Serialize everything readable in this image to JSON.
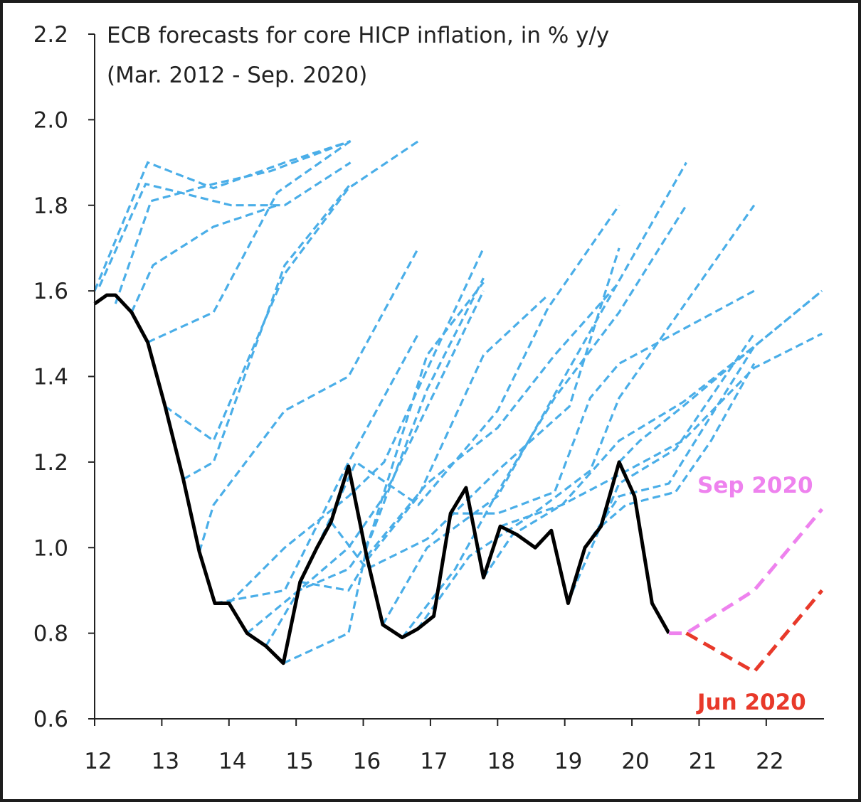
{
  "chart_data": {
    "type": "line",
    "title": "ECB forecasts for core HICP inflation, in % y/y",
    "subtitle": "(Mar. 2012  - Sep. 2020)",
    "xlim": [
      12,
      22.86
    ],
    "ylim": [
      0.6,
      2.2
    ],
    "x_ticks": [
      "12",
      "13",
      "14",
      "15",
      "16",
      "17",
      "18",
      "19",
      "20",
      "21",
      "22"
    ],
    "y_ticks": [
      "0.6",
      "0.8",
      "1.0",
      "1.2",
      "1.4",
      "1.6",
      "1.8",
      "2.0",
      "2.2"
    ],
    "grid": false,
    "colors": {
      "actual": "#000000",
      "forecast": "#4aaee8",
      "sep2020": "#ee82ee",
      "jun2020": "#e8392a"
    },
    "annotations": [
      {
        "text": "Sep 2020",
        "color": "#ee82ee"
      },
      {
        "text": "Jun 2020",
        "color": "#e8392a"
      }
    ],
    "actual": [
      [
        12.0,
        1.57
      ],
      [
        12.18,
        1.59
      ],
      [
        12.31,
        1.59
      ],
      [
        12.55,
        1.55
      ],
      [
        12.79,
        1.48
      ],
      [
        13.05,
        1.33
      ],
      [
        13.32,
        1.16
      ],
      [
        13.56,
        0.99
      ],
      [
        13.79,
        0.87
      ],
      [
        14.0,
        0.87
      ],
      [
        14.27,
        0.8
      ],
      [
        14.55,
        0.77
      ],
      [
        14.81,
        0.73
      ],
      [
        15.06,
        0.92
      ],
      [
        15.31,
        1.0
      ],
      [
        15.52,
        1.06
      ],
      [
        15.78,
        1.19
      ],
      [
        16.05,
        0.98
      ],
      [
        16.29,
        0.82
      ],
      [
        16.58,
        0.79
      ],
      [
        16.81,
        0.81
      ],
      [
        17.05,
        0.84
      ],
      [
        17.3,
        1.08
      ],
      [
        17.53,
        1.14
      ],
      [
        17.79,
        0.93
      ],
      [
        18.04,
        1.05
      ],
      [
        18.29,
        1.03
      ],
      [
        18.56,
        1.0
      ],
      [
        18.8,
        1.04
      ],
      [
        19.05,
        0.87
      ],
      [
        19.3,
        1.0
      ],
      [
        19.54,
        1.05
      ],
      [
        19.81,
        1.2
      ],
      [
        20.04,
        1.12
      ],
      [
        20.3,
        0.87
      ],
      [
        20.55,
        0.8
      ]
    ],
    "sep2020": [
      [
        20.55,
        0.8
      ],
      [
        20.81,
        0.8
      ],
      [
        21.82,
        0.9
      ],
      [
        22.83,
        1.09
      ]
    ],
    "jun2020": [
      [
        20.81,
        0.8
      ],
      [
        21.82,
        0.71
      ],
      [
        22.83,
        0.9
      ]
    ],
    "forecasts": [
      [
        [
          12.0,
          1.6
        ],
        [
          12.79,
          1.9
        ],
        [
          13.77,
          1.84
        ],
        [
          14.83,
          1.9
        ],
        [
          15.81,
          1.95
        ]
      ],
      [
        [
          12.07,
          1.61
        ],
        [
          12.76,
          1.85
        ],
        [
          14.03,
          1.8
        ],
        [
          14.83,
          1.8
        ],
        [
          15.81,
          1.9
        ]
      ],
      [
        [
          12.31,
          1.57
        ],
        [
          12.84,
          1.81
        ],
        [
          13.77,
          1.85
        ],
        [
          14.62,
          1.88
        ],
        [
          15.81,
          1.95
        ]
      ],
      [
        [
          12.55,
          1.55
        ],
        [
          12.87,
          1.66
        ],
        [
          13.77,
          1.75
        ],
        [
          14.72,
          1.8
        ]
      ],
      [
        [
          12.79,
          1.48
        ],
        [
          13.77,
          1.55
        ],
        [
          14.72,
          1.83
        ],
        [
          15.81,
          1.95
        ]
      ],
      [
        [
          13.05,
          1.33
        ],
        [
          13.77,
          1.25
        ],
        [
          14.83,
          1.64
        ],
        [
          15.78,
          1.84
        ],
        [
          16.82,
          1.95
        ]
      ],
      [
        [
          13.32,
          1.16
        ],
        [
          13.77,
          1.2
        ],
        [
          14.83,
          1.66
        ],
        [
          15.81,
          1.85
        ]
      ],
      [
        [
          13.56,
          0.99
        ],
        [
          13.77,
          1.1
        ],
        [
          14.83,
          1.32
        ],
        [
          15.78,
          1.4
        ],
        [
          16.82,
          1.7
        ]
      ],
      [
        [
          13.79,
          0.87
        ],
        [
          14.83,
          0.9
        ],
        [
          15.78,
          1.2
        ],
        [
          16.82,
          1.5
        ]
      ],
      [
        [
          14.0,
          0.87
        ],
        [
          14.83,
          1.0
        ],
        [
          15.78,
          1.12
        ],
        [
          16.31,
          1.2
        ],
        [
          17.79,
          1.7
        ]
      ],
      [
        [
          14.27,
          0.8
        ],
        [
          15.04,
          0.9
        ],
        [
          15.78,
          1.0
        ],
        [
          16.31,
          1.12
        ],
        [
          17.79,
          1.6
        ]
      ],
      [
        [
          14.55,
          0.77
        ],
        [
          15.04,
          0.9
        ],
        [
          15.78,
          0.95
        ],
        [
          16.1,
          1.02
        ],
        [
          16.95,
          1.37
        ],
        [
          17.79,
          1.63
        ]
      ],
      [
        [
          14.81,
          0.73
        ],
        [
          15.78,
          0.8
        ],
        [
          16.05,
          1.0
        ],
        [
          16.95,
          1.45
        ],
        [
          17.79,
          1.62
        ]
      ],
      [
        [
          15.06,
          0.92
        ],
        [
          15.78,
          0.9
        ],
        [
          16.05,
          0.97
        ],
        [
          16.82,
          1.12
        ],
        [
          17.79,
          1.45
        ],
        [
          18.75,
          1.59
        ]
      ],
      [
        [
          15.31,
          1.0
        ],
        [
          15.89,
          1.2
        ],
        [
          16.82,
          1.1
        ],
        [
          18.0,
          1.32
        ],
        [
          18.75,
          1.56
        ],
        [
          19.81,
          1.8
        ]
      ],
      [
        [
          15.52,
          1.06
        ],
        [
          16.05,
          0.95
        ],
        [
          16.95,
          1.02
        ],
        [
          18.0,
          1.18
        ],
        [
          19.07,
          1.33
        ],
        [
          19.81,
          1.7
        ]
      ],
      [
        [
          16.05,
          0.98
        ],
        [
          16.95,
          1.15
        ],
        [
          18.0,
          1.28
        ],
        [
          18.85,
          1.45
        ],
        [
          19.81,
          1.62
        ]
      ],
      [
        [
          16.29,
          0.82
        ],
        [
          16.95,
          1.0
        ],
        [
          18.0,
          1.12
        ],
        [
          19.07,
          1.42
        ],
        [
          20.81,
          1.9
        ]
      ],
      [
        [
          16.58,
          0.79
        ],
        [
          17.37,
          0.95
        ],
        [
          18.0,
          1.13
        ],
        [
          18.85,
          1.35
        ],
        [
          19.81,
          1.55
        ],
        [
          20.81,
          1.8
        ]
      ],
      [
        [
          16.81,
          0.81
        ],
        [
          17.58,
          0.98
        ],
        [
          18.54,
          1.08
        ],
        [
          19.38,
          1.18
        ],
        [
          19.81,
          1.35
        ],
        [
          21.82,
          1.8
        ]
      ],
      [
        [
          17.3,
          1.08
        ],
        [
          18.0,
          1.08
        ],
        [
          18.85,
          1.13
        ],
        [
          19.38,
          1.35
        ],
        [
          19.81,
          1.43
        ],
        [
          21.82,
          1.6
        ]
      ],
      [
        [
          17.79,
          0.93
        ],
        [
          18.22,
          1.03
        ],
        [
          18.96,
          1.1
        ],
        [
          19.81,
          1.25
        ],
        [
          20.76,
          1.34
        ],
        [
          21.82,
          1.47
        ],
        [
          22.83,
          1.6
        ]
      ],
      [
        [
          18.04,
          1.05
        ],
        [
          18.96,
          1.1
        ],
        [
          19.81,
          1.17
        ],
        [
          20.76,
          1.25
        ],
        [
          21.82,
          1.42
        ],
        [
          22.83,
          1.5
        ]
      ],
      [
        [
          19.04,
          0.87
        ],
        [
          19.81,
          1.15
        ],
        [
          20.65,
          1.23
        ],
        [
          21.82,
          1.5
        ]
      ],
      [
        [
          19.3,
          1.0
        ],
        [
          19.81,
          1.12
        ],
        [
          20.55,
          1.15
        ],
        [
          21.82,
          1.47
        ]
      ],
      [
        [
          19.54,
          1.05
        ],
        [
          19.91,
          1.1
        ],
        [
          20.65,
          1.13
        ],
        [
          21.18,
          1.25
        ],
        [
          21.82,
          1.43
        ]
      ],
      [
        [
          19.81,
          1.2
        ],
        [
          20.12,
          1.25
        ],
        [
          20.76,
          1.33
        ],
        [
          21.82,
          1.47
        ],
        [
          22.83,
          1.6
        ]
      ]
    ]
  }
}
